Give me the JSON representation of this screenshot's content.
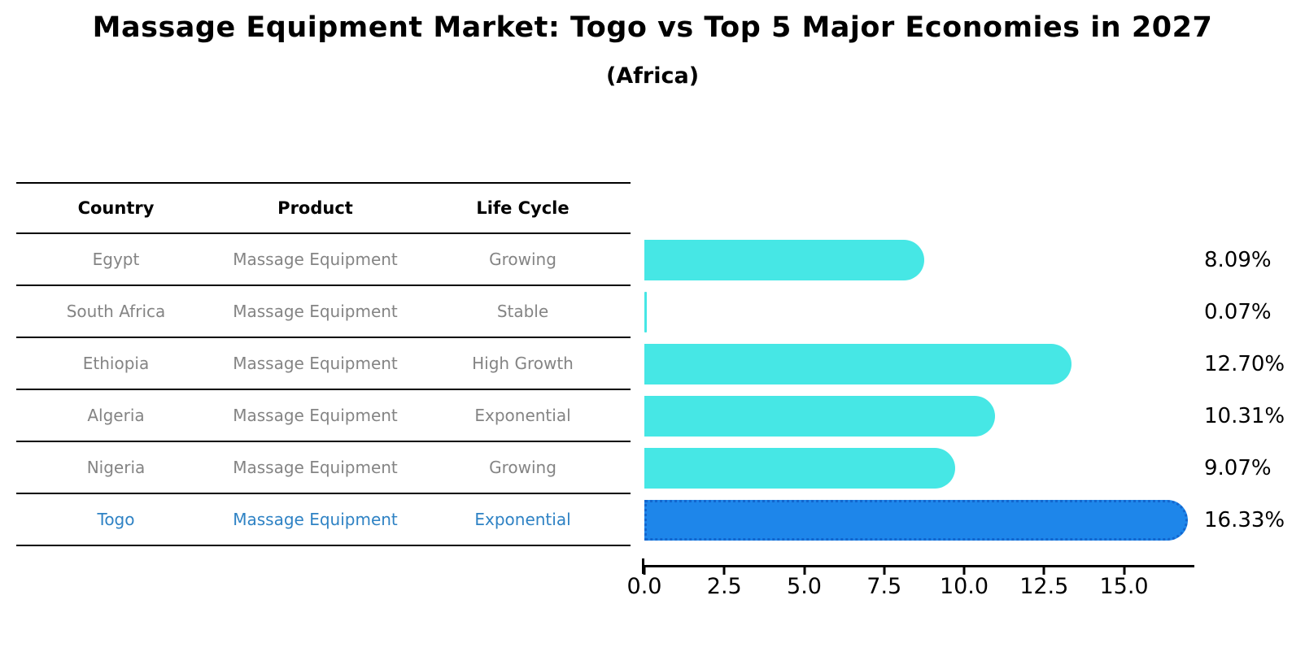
{
  "title": "Massage Equipment Market: Togo vs Top 5 Major Economies in 2027",
  "subtitle": "(Africa)",
  "table": {
    "headers": {
      "country": "Country",
      "product": "Product",
      "life_cycle": "Life Cycle"
    },
    "rows": [
      {
        "country": "Egypt",
        "product": "Massage Equipment",
        "life_cycle": "Growing",
        "highlight": false
      },
      {
        "country": "South Africa",
        "product": "Massage Equipment",
        "life_cycle": "Stable",
        "highlight": false
      },
      {
        "country": "Ethiopia",
        "product": "Massage Equipment",
        "life_cycle": "High Growth",
        "highlight": false
      },
      {
        "country": "Algeria",
        "product": "Massage Equipment",
        "life_cycle": "Exponential",
        "highlight": false
      },
      {
        "country": "Nigeria",
        "product": "Massage Equipment",
        "life_cycle": "Growing",
        "highlight": false
      },
      {
        "country": "Togo",
        "product": "Massage Equipment",
        "life_cycle": "Exponential",
        "highlight": true
      }
    ]
  },
  "chart_data": {
    "type": "bar",
    "orientation": "horizontal",
    "categories": [
      "Egypt",
      "South Africa",
      "Ethiopia",
      "Algeria",
      "Nigeria",
      "Togo"
    ],
    "values": [
      8.09,
      0.07,
      12.7,
      10.31,
      9.07,
      16.33
    ],
    "value_labels": [
      "8.09%",
      "0.07%",
      "12.70%",
      "10.31%",
      "9.07%",
      "16.33%"
    ],
    "highlight_index": 5,
    "x_ticks": [
      "0.0",
      "2.5",
      "5.0",
      "7.5",
      "10.0",
      "12.5",
      "15.0"
    ],
    "x_tick_values": [
      0,
      2.5,
      5,
      7.5,
      10,
      12.5,
      15
    ],
    "xlim": [
      0,
      17.2
    ],
    "grid": false,
    "legend": "none"
  },
  "colors": {
    "bar": "#46e7e5",
    "highlight_bar": "#1e86ea",
    "highlight_bar_edge": "#1366ce",
    "highlight_text": "#2e82c4",
    "row_text": "#848484",
    "text": "#000000"
  }
}
